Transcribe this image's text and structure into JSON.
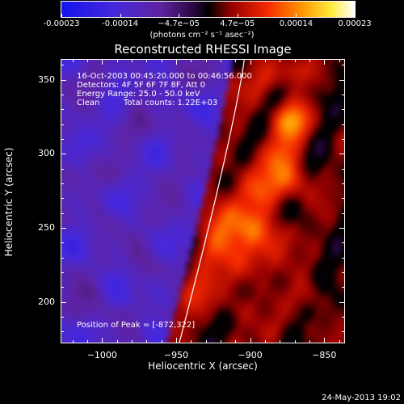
{
  "chart_data": {
    "type": "heatmap",
    "title": "Reconstructed RHESSI Image",
    "xlabel": "Heliocentric X (arcsec)",
    "ylabel": "Heliocentric Y (arcsec)",
    "xlim": [
      -1028,
      -836
    ],
    "ylim": [
      172,
      364
    ],
    "x_ticks": [
      -1000,
      -950,
      -900,
      -850
    ],
    "y_ticks": [
      200,
      250,
      300,
      350
    ],
    "colorbar": {
      "ticks": [
        "-0.00023",
        "-0.00014",
        "−4.7e−05",
        "4.7e−05",
        "0.00014",
        "0.00023"
      ],
      "unit": "(photons cm⁻² s⁻¹ asec⁻²)",
      "range": [
        -0.00023,
        0.00023
      ]
    },
    "annotations": {
      "time_range": "16-Oct-2003 00:45:20.000 to 00:46:56.000",
      "detectors": "Detectors: 4F 5F 6F 7F 8F, Att 0",
      "energy_range": "Energy Range: 25.0 - 50.0 keV",
      "method": "Clean",
      "total_counts": "Total counts: 1.22E+03",
      "peak": "Position of Peak = [-872,322]"
    },
    "peak": {
      "x": -872,
      "y": 322
    },
    "grid": false
  },
  "footer": {
    "date": "24-May-2013 19:02"
  }
}
